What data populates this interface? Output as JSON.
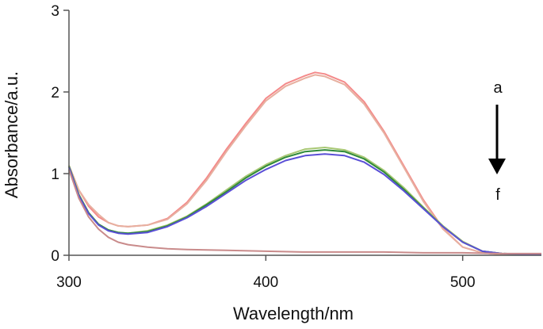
{
  "chart_data": {
    "type": "line",
    "title": "",
    "xlabel": "Wavelength/nm",
    "ylabel": "Absorbance/a.u.",
    "xlim": [
      300,
      540
    ],
    "ylim": [
      0,
      3
    ],
    "x_ticks": [
      300,
      400,
      500
    ],
    "y_ticks": [
      0,
      1,
      2,
      3
    ],
    "grid": false,
    "legend": "none",
    "annotations": {
      "arrow_top_label": "a",
      "arrow_bottom_label": "f"
    },
    "series": [
      {
        "color": "#f48a8a",
        "points": [
          [
            300,
            1.1
          ],
          [
            305,
            0.8
          ],
          [
            310,
            0.6
          ],
          [
            315,
            0.47
          ],
          [
            320,
            0.4
          ],
          [
            325,
            0.36
          ],
          [
            330,
            0.35
          ],
          [
            340,
            0.37
          ],
          [
            350,
            0.45
          ],
          [
            360,
            0.65
          ],
          [
            370,
            0.95
          ],
          [
            380,
            1.3
          ],
          [
            390,
            1.62
          ],
          [
            400,
            1.92
          ],
          [
            410,
            2.1
          ],
          [
            420,
            2.2
          ],
          [
            425,
            2.24
          ],
          [
            430,
            2.22
          ],
          [
            440,
            2.12
          ],
          [
            450,
            1.88
          ],
          [
            460,
            1.52
          ],
          [
            470,
            1.1
          ],
          [
            480,
            0.68
          ],
          [
            490,
            0.33
          ],
          [
            500,
            0.1
          ],
          [
            510,
            0.03
          ],
          [
            520,
            0.01
          ],
          [
            540,
            0.01
          ]
        ]
      },
      {
        "color": "#e7b0a0",
        "points": [
          [
            300,
            1.08
          ],
          [
            305,
            0.8
          ],
          [
            310,
            0.62
          ],
          [
            315,
            0.5
          ],
          [
            320,
            0.4
          ],
          [
            325,
            0.36
          ],
          [
            330,
            0.35
          ],
          [
            340,
            0.37
          ],
          [
            350,
            0.44
          ],
          [
            360,
            0.63
          ],
          [
            370,
            0.92
          ],
          [
            380,
            1.27
          ],
          [
            390,
            1.59
          ],
          [
            400,
            1.89
          ],
          [
            410,
            2.07
          ],
          [
            420,
            2.17
          ],
          [
            425,
            2.21
          ],
          [
            430,
            2.19
          ],
          [
            440,
            2.09
          ],
          [
            450,
            1.85
          ],
          [
            460,
            1.5
          ],
          [
            470,
            1.08
          ],
          [
            480,
            0.66
          ],
          [
            490,
            0.32
          ],
          [
            500,
            0.1
          ],
          [
            510,
            0.03
          ],
          [
            520,
            0.01
          ],
          [
            540,
            0.01
          ]
        ]
      },
      {
        "color": "#a8c874",
        "points": [
          [
            300,
            1.1
          ],
          [
            305,
            0.75
          ],
          [
            310,
            0.52
          ],
          [
            315,
            0.38
          ],
          [
            320,
            0.31
          ],
          [
            325,
            0.28
          ],
          [
            330,
            0.27
          ],
          [
            340,
            0.3
          ],
          [
            350,
            0.37
          ],
          [
            360,
            0.48
          ],
          [
            370,
            0.63
          ],
          [
            380,
            0.8
          ],
          [
            390,
            0.97
          ],
          [
            400,
            1.11
          ],
          [
            410,
            1.22
          ],
          [
            420,
            1.3
          ],
          [
            430,
            1.32
          ],
          [
            440,
            1.29
          ],
          [
            450,
            1.2
          ],
          [
            460,
            1.04
          ],
          [
            470,
            0.83
          ],
          [
            480,
            0.59
          ],
          [
            490,
            0.36
          ],
          [
            500,
            0.17
          ],
          [
            510,
            0.05
          ],
          [
            520,
            0.02
          ],
          [
            540,
            0.01
          ]
        ]
      },
      {
        "color": "#2f8a3a",
        "points": [
          [
            300,
            1.09
          ],
          [
            305,
            0.74
          ],
          [
            310,
            0.52
          ],
          [
            315,
            0.38
          ],
          [
            320,
            0.31
          ],
          [
            325,
            0.28
          ],
          [
            330,
            0.27
          ],
          [
            340,
            0.29
          ],
          [
            350,
            0.36
          ],
          [
            360,
            0.47
          ],
          [
            370,
            0.62
          ],
          [
            380,
            0.78
          ],
          [
            390,
            0.95
          ],
          [
            400,
            1.09
          ],
          [
            410,
            1.2
          ],
          [
            420,
            1.27
          ],
          [
            430,
            1.29
          ],
          [
            440,
            1.27
          ],
          [
            450,
            1.18
          ],
          [
            460,
            1.02
          ],
          [
            470,
            0.81
          ],
          [
            480,
            0.58
          ],
          [
            490,
            0.35
          ],
          [
            500,
            0.16
          ],
          [
            510,
            0.05
          ],
          [
            520,
            0.02
          ],
          [
            540,
            0.01
          ]
        ]
      },
      {
        "color": "#5a4fd6",
        "points": [
          [
            300,
            1.08
          ],
          [
            305,
            0.73
          ],
          [
            310,
            0.51
          ],
          [
            315,
            0.37
          ],
          [
            320,
            0.3
          ],
          [
            325,
            0.27
          ],
          [
            330,
            0.26
          ],
          [
            340,
            0.28
          ],
          [
            350,
            0.35
          ],
          [
            360,
            0.46
          ],
          [
            370,
            0.6
          ],
          [
            380,
            0.76
          ],
          [
            390,
            0.92
          ],
          [
            400,
            1.05
          ],
          [
            410,
            1.16
          ],
          [
            420,
            1.22
          ],
          [
            430,
            1.24
          ],
          [
            440,
            1.22
          ],
          [
            450,
            1.14
          ],
          [
            460,
            0.99
          ],
          [
            470,
            0.79
          ],
          [
            480,
            0.57
          ],
          [
            490,
            0.35
          ],
          [
            500,
            0.16
          ],
          [
            510,
            0.05
          ],
          [
            520,
            0.02
          ],
          [
            540,
            0.01
          ]
        ]
      },
      {
        "color": "#c98b8b",
        "points": [
          [
            300,
            1.05
          ],
          [
            305,
            0.7
          ],
          [
            310,
            0.47
          ],
          [
            315,
            0.32
          ],
          [
            320,
            0.22
          ],
          [
            325,
            0.16
          ],
          [
            330,
            0.13
          ],
          [
            340,
            0.1
          ],
          [
            350,
            0.08
          ],
          [
            360,
            0.07
          ],
          [
            380,
            0.06
          ],
          [
            400,
            0.05
          ],
          [
            420,
            0.04
          ],
          [
            440,
            0.04
          ],
          [
            460,
            0.04
          ],
          [
            480,
            0.03
          ],
          [
            500,
            0.03
          ],
          [
            520,
            0.02
          ],
          [
            540,
            0.02
          ]
        ]
      }
    ]
  }
}
